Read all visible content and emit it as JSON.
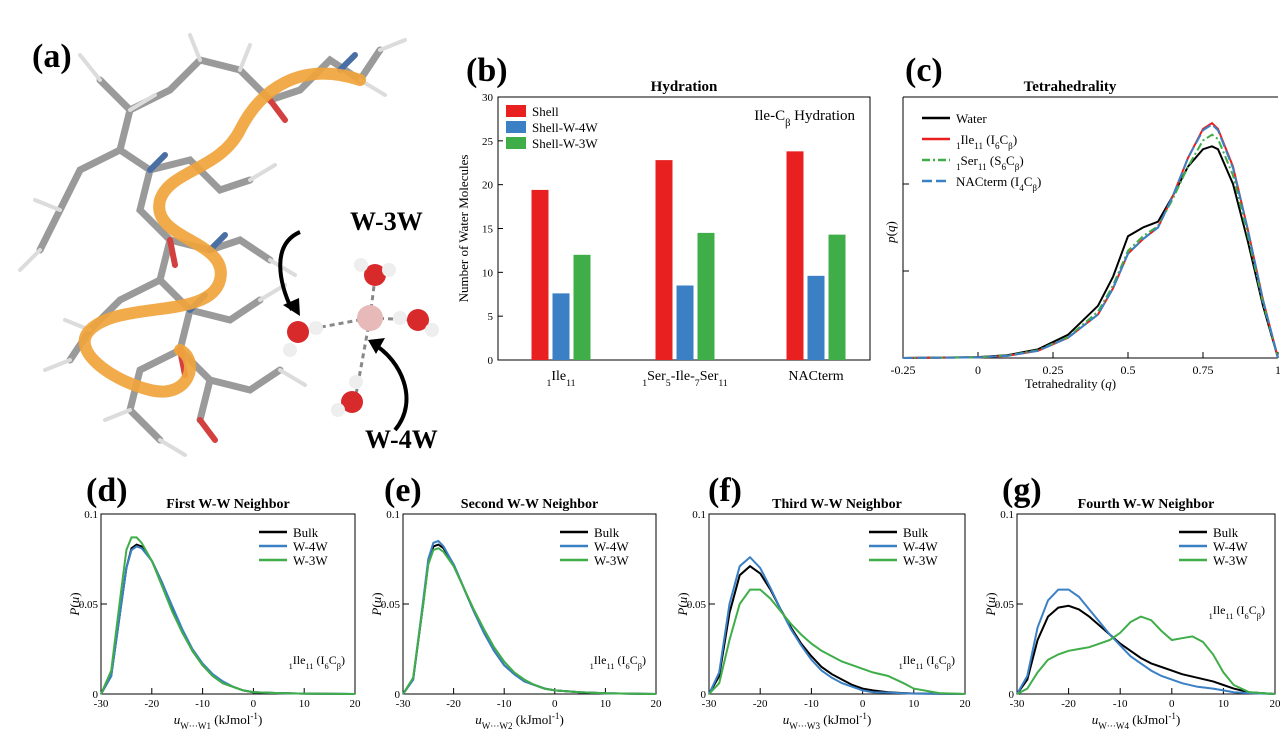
{
  "panels": {
    "a": {
      "letter": "(a)",
      "label_3w": "W-3W",
      "label_4w": "W-4W"
    },
    "b": {
      "letter": "(b)"
    },
    "c": {
      "letter": "(c)"
    },
    "d": {
      "letter": "(d)"
    },
    "e": {
      "letter": "(e)"
    },
    "f": {
      "letter": "(f)"
    },
    "g": {
      "letter": "(g)"
    }
  },
  "colors": {
    "red": "#e8201f",
    "blue": "#3b80c4",
    "green": "#3fae49",
    "black": "#000000"
  },
  "chart_data": [
    {
      "id": "b",
      "type": "bar",
      "title": "Hydration",
      "annotation": "Ile-Cβ Hydration",
      "ylabel": "Number of Water Molecules",
      "ylim": [
        0,
        30
      ],
      "yticks": [
        "0",
        "5",
        "10",
        "15",
        "20",
        "25",
        "30"
      ],
      "categories": [
        "1Ile11",
        "1Ser5-Ile-7Ser11",
        "NACterm"
      ],
      "series": [
        {
          "name": "Shell",
          "color": "#e8201f",
          "values": [
            19.4,
            22.8,
            23.8
          ]
        },
        {
          "name": "Shell-W-4W",
          "color": "#3b80c4",
          "values": [
            7.6,
            8.5,
            9.6
          ]
        },
        {
          "name": "Shell-W-3W",
          "color": "#3fae49",
          "values": [
            12.0,
            14.5,
            14.3
          ]
        }
      ],
      "legend_position": "top-left"
    },
    {
      "id": "c",
      "type": "line",
      "title": "Tetrahedrality",
      "xlabel": "Tetrahedrality (q)",
      "ylabel": "p(q)",
      "xlim": [
        -0.25,
        1.0
      ],
      "xticks": [
        "-0.25",
        "0",
        "0.25",
        "0.5",
        "0.75",
        "1"
      ],
      "series": [
        {
          "name": "Water",
          "color": "#000000",
          "dash": "solid",
          "x": [
            -0.25,
            0,
            0.1,
            0.2,
            0.3,
            0.4,
            0.45,
            0.5,
            0.55,
            0.6,
            0.65,
            0.7,
            0.75,
            0.78,
            0.8,
            0.85,
            0.9,
            0.95,
            1.0
          ],
          "y": [
            0,
            0.003,
            0.01,
            0.03,
            0.08,
            0.18,
            0.28,
            0.42,
            0.45,
            0.47,
            0.56,
            0.66,
            0.72,
            0.73,
            0.72,
            0.6,
            0.4,
            0.18,
            0
          ]
        },
        {
          "name": "1Ile11 (I6Cβ)",
          "color": "#e8201f",
          "dash": "solid",
          "x": [
            -0.25,
            0,
            0.1,
            0.2,
            0.3,
            0.4,
            0.45,
            0.5,
            0.55,
            0.6,
            0.65,
            0.7,
            0.75,
            0.78,
            0.8,
            0.85,
            0.9,
            0.95,
            1.0
          ],
          "y": [
            0,
            0.002,
            0.008,
            0.025,
            0.07,
            0.15,
            0.24,
            0.36,
            0.41,
            0.45,
            0.56,
            0.69,
            0.79,
            0.81,
            0.79,
            0.66,
            0.44,
            0.2,
            0
          ]
        },
        {
          "name": "1Ser11 (S6Cβ)",
          "color": "#3fae49",
          "dash": "dashdot",
          "x": [
            -0.25,
            0,
            0.1,
            0.2,
            0.3,
            0.4,
            0.45,
            0.5,
            0.55,
            0.6,
            0.65,
            0.7,
            0.75,
            0.78,
            0.8,
            0.85,
            0.9,
            0.95,
            1.0
          ],
          "y": [
            0,
            0.002,
            0.009,
            0.027,
            0.072,
            0.16,
            0.25,
            0.37,
            0.42,
            0.455,
            0.55,
            0.66,
            0.75,
            0.77,
            0.755,
            0.63,
            0.42,
            0.19,
            0
          ]
        },
        {
          "name": "NACterm (I4Cβ)",
          "color": "#3b80c4",
          "dash": "longdash",
          "x": [
            -0.25,
            0,
            0.1,
            0.2,
            0.3,
            0.4,
            0.45,
            0.5,
            0.55,
            0.6,
            0.65,
            0.7,
            0.75,
            0.78,
            0.8,
            0.85,
            0.9,
            0.95,
            1.0
          ],
          "y": [
            0,
            0.002,
            0.008,
            0.025,
            0.07,
            0.15,
            0.24,
            0.36,
            0.41,
            0.45,
            0.56,
            0.69,
            0.785,
            0.805,
            0.785,
            0.655,
            0.44,
            0.2,
            0
          ]
        }
      ],
      "legend_position": "top-left"
    },
    {
      "id": "d",
      "type": "line",
      "title": "First W-W Neighbor",
      "xlabel": "u W···W1 (kJmol-1)",
      "ylabel": "P(u)",
      "annotation": "1Ile11 (I6Cβ)",
      "xlim": [
        -30,
        20
      ],
      "ylim": [
        0,
        0.1
      ],
      "xticks": [
        "-30",
        "-20",
        "-10",
        "0",
        "10",
        "20"
      ],
      "yticks": [
        "0",
        "0.05",
        "0.1"
      ],
      "series": [
        {
          "name": "Bulk",
          "color": "#000000",
          "x": [
            -30,
            -28,
            -26,
            -25,
            -24,
            -23,
            -22,
            -20,
            -18,
            -16,
            -14,
            -12,
            -10,
            -8,
            -6,
            -4,
            -2,
            0,
            5,
            10,
            20
          ],
          "y": [
            0,
            0.01,
            0.05,
            0.07,
            0.081,
            0.083,
            0.082,
            0.074,
            0.062,
            0.048,
            0.035,
            0.024,
            0.016,
            0.01,
            0.006,
            0.004,
            0.002,
            0.001,
            0.0005,
            0.0002,
            0
          ]
        },
        {
          "name": "W-4W",
          "color": "#3b80c4",
          "x": [
            -30,
            -28,
            -26,
            -25,
            -24,
            -23,
            -22,
            -20,
            -18,
            -16,
            -14,
            -12,
            -10,
            -8,
            -6,
            -4,
            -2,
            0,
            5,
            10,
            20
          ],
          "y": [
            0,
            0.01,
            0.05,
            0.07,
            0.08,
            0.082,
            0.081,
            0.074,
            0.062,
            0.049,
            0.036,
            0.025,
            0.017,
            0.011,
            0.007,
            0.004,
            0.002,
            0.001,
            0.0005,
            0.0002,
            0
          ]
        },
        {
          "name": "W-3W",
          "color": "#3fae49",
          "x": [
            -30,
            -28,
            -26,
            -25,
            -24,
            -23,
            -22,
            -20,
            -18,
            -16,
            -14,
            -12,
            -10,
            -8,
            -6,
            -4,
            -2,
            0,
            5,
            10,
            20
          ],
          "y": [
            0,
            0.013,
            0.058,
            0.08,
            0.087,
            0.087,
            0.084,
            0.074,
            0.06,
            0.046,
            0.034,
            0.024,
            0.016,
            0.01,
            0.006,
            0.004,
            0.002,
            0.001,
            0.0005,
            0.0002,
            0
          ]
        }
      ],
      "legend_position": "top-right"
    },
    {
      "id": "e",
      "type": "line",
      "title": "Second W-W Neighbor",
      "xlabel": "u W···W2 (kJmol-1)",
      "ylabel": "P(u)",
      "annotation": "1Ile11 (I6Cβ)",
      "xlim": [
        -30,
        20
      ],
      "ylim": [
        0,
        0.1
      ],
      "xticks": [
        "-30",
        "-20",
        "-10",
        "0",
        "10",
        "20"
      ],
      "yticks": [
        "0",
        "0.05",
        "0.1"
      ],
      "series": [
        {
          "name": "Bulk",
          "color": "#000000",
          "x": [
            -30,
            -28,
            -26,
            -25,
            -24,
            -23,
            -22,
            -20,
            -18,
            -16,
            -14,
            -12,
            -10,
            -8,
            -6,
            -4,
            -2,
            0,
            5,
            10,
            20
          ],
          "y": [
            0,
            0.008,
            0.05,
            0.073,
            0.082,
            0.083,
            0.081,
            0.072,
            0.059,
            0.046,
            0.034,
            0.024,
            0.016,
            0.011,
            0.007,
            0.005,
            0.003,
            0.002,
            0.001,
            0.0004,
            0
          ]
        },
        {
          "name": "W-4W",
          "color": "#3b80c4",
          "x": [
            -30,
            -28,
            -26,
            -25,
            -24,
            -23,
            -22,
            -20,
            -18,
            -16,
            -14,
            -12,
            -10,
            -8,
            -6,
            -4,
            -2,
            0,
            5,
            10,
            20
          ],
          "y": [
            0,
            0.008,
            0.052,
            0.075,
            0.084,
            0.085,
            0.082,
            0.072,
            0.059,
            0.046,
            0.034,
            0.024,
            0.016,
            0.011,
            0.007,
            0.005,
            0.003,
            0.002,
            0.001,
            0.0004,
            0
          ]
        },
        {
          "name": "W-3W",
          "color": "#3fae49",
          "x": [
            -30,
            -28,
            -26,
            -25,
            -24,
            -23,
            -22,
            -20,
            -18,
            -16,
            -14,
            -12,
            -10,
            -8,
            -6,
            -4,
            -2,
            0,
            5,
            10,
            20
          ],
          "y": [
            0,
            0.009,
            0.05,
            0.072,
            0.08,
            0.081,
            0.079,
            0.071,
            0.059,
            0.047,
            0.036,
            0.026,
            0.018,
            0.012,
            0.008,
            0.005,
            0.003,
            0.002,
            0.001,
            0.0004,
            0
          ]
        }
      ],
      "legend_position": "top-right"
    },
    {
      "id": "f",
      "type": "line",
      "title": "Third W-W Neighbor",
      "xlabel": "u W···W3 (kJmol-1)",
      "ylabel": "P(u)",
      "annotation": "1Ile11 (I6Cβ)",
      "xlim": [
        -30,
        20
      ],
      "ylim": [
        0,
        0.1
      ],
      "xticks": [
        "-30",
        "-20",
        "-10",
        "0",
        "10",
        "20"
      ],
      "yticks": [
        "0",
        "0.05",
        "0.1"
      ],
      "series": [
        {
          "name": "Bulk",
          "color": "#000000",
          "x": [
            -30,
            -28,
            -26,
            -24,
            -22,
            -20,
            -18,
            -16,
            -14,
            -12,
            -10,
            -8,
            -6,
            -4,
            -2,
            0,
            2,
            5,
            8,
            10,
            15,
            20
          ],
          "y": [
            0,
            0.01,
            0.045,
            0.066,
            0.071,
            0.067,
            0.058,
            0.047,
            0.037,
            0.028,
            0.021,
            0.015,
            0.011,
            0.008,
            0.005,
            0.003,
            0.002,
            0.001,
            0.0005,
            0.0003,
            0.0001,
            0
          ]
        },
        {
          "name": "W-4W",
          "color": "#3b80c4",
          "x": [
            -30,
            -28,
            -26,
            -24,
            -22,
            -20,
            -18,
            -16,
            -14,
            -12,
            -10,
            -8,
            -6,
            -4,
            -2,
            0,
            2,
            5,
            8,
            10,
            15,
            20
          ],
          "y": [
            0,
            0.012,
            0.05,
            0.071,
            0.076,
            0.07,
            0.059,
            0.047,
            0.036,
            0.027,
            0.019,
            0.013,
            0.009,
            0.006,
            0.004,
            0.002,
            0.001,
            0.0008,
            0.0004,
            0.0002,
            0.0001,
            0
          ]
        },
        {
          "name": "W-3W",
          "color": "#3fae49",
          "x": [
            -30,
            -28,
            -26,
            -24,
            -22,
            -20,
            -18,
            -16,
            -14,
            -12,
            -10,
            -8,
            -6,
            -4,
            -2,
            0,
            2,
            5,
            8,
            10,
            15,
            20
          ],
          "y": [
            0,
            0.006,
            0.03,
            0.05,
            0.058,
            0.058,
            0.053,
            0.046,
            0.039,
            0.033,
            0.028,
            0.024,
            0.021,
            0.018,
            0.016,
            0.014,
            0.012,
            0.01,
            0.006,
            0.003,
            0.0005,
            0
          ]
        }
      ],
      "legend_position": "top-right"
    },
    {
      "id": "g",
      "type": "line",
      "title": "Fourth W-W Neighbor",
      "xlabel": "u W···W4 (kJmol-1)",
      "ylabel": "P(u)",
      "annotation": "1Ile11 (I6Cβ)",
      "xlim": [
        -30,
        20
      ],
      "ylim": [
        0,
        0.1
      ],
      "xticks": [
        "-30",
        "-20",
        "-10",
        "0",
        "10",
        "20"
      ],
      "yticks": [
        "0",
        "0.05",
        "0.1"
      ],
      "series": [
        {
          "name": "Bulk",
          "color": "#000000",
          "x": [
            -30,
            -28,
            -26,
            -24,
            -22,
            -20,
            -18,
            -16,
            -14,
            -12,
            -10,
            -8,
            -6,
            -4,
            -2,
            0,
            2,
            5,
            8,
            10,
            12,
            15,
            20
          ],
          "y": [
            0,
            0.008,
            0.03,
            0.043,
            0.048,
            0.049,
            0.047,
            0.043,
            0.038,
            0.033,
            0.028,
            0.024,
            0.02,
            0.017,
            0.015,
            0.013,
            0.011,
            0.009,
            0.007,
            0.005,
            0.003,
            0.001,
            0
          ]
        },
        {
          "name": "W-4W",
          "color": "#3b80c4",
          "x": [
            -30,
            -28,
            -26,
            -24,
            -22,
            -20,
            -18,
            -16,
            -14,
            -12,
            -10,
            -8,
            -6,
            -4,
            -2,
            0,
            2,
            5,
            8,
            10,
            12,
            15,
            20
          ],
          "y": [
            0,
            0.01,
            0.037,
            0.052,
            0.058,
            0.058,
            0.054,
            0.047,
            0.04,
            0.033,
            0.027,
            0.021,
            0.017,
            0.013,
            0.01,
            0.008,
            0.006,
            0.004,
            0.003,
            0.002,
            0.001,
            0.0005,
            0
          ]
        },
        {
          "name": "W-3W",
          "color": "#3fae49",
          "x": [
            -30,
            -28,
            -26,
            -24,
            -22,
            -20,
            -18,
            -16,
            -14,
            -12,
            -10,
            -8,
            -6,
            -4,
            -2,
            0,
            2,
            4,
            6,
            8,
            10,
            12,
            15,
            20
          ],
          "y": [
            0,
            0.003,
            0.012,
            0.019,
            0.022,
            0.024,
            0.025,
            0.026,
            0.028,
            0.03,
            0.034,
            0.04,
            0.043,
            0.041,
            0.035,
            0.03,
            0.031,
            0.032,
            0.029,
            0.022,
            0.012,
            0.005,
            0.001,
            0
          ]
        }
      ],
      "legend_position": "top-right"
    }
  ]
}
